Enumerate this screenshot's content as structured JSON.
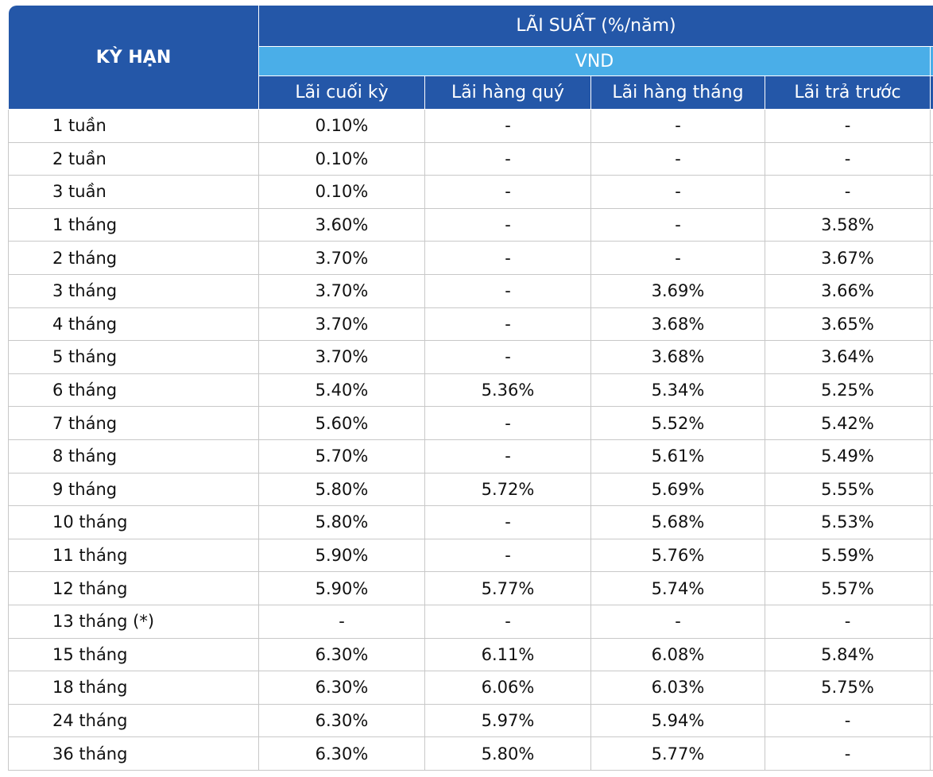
{
  "header": {
    "term": "KỲ HẠN",
    "rate": "LÃI SUẤT (%/năm)",
    "currency": "VND",
    "columns": [
      "Lãi cuối kỳ",
      "Lãi hàng quý",
      "Lãi hàng tháng",
      "Lãi trả trước"
    ]
  },
  "table": {
    "rows": [
      [
        "1 tuần",
        "0.10%",
        "-",
        "-",
        "-"
      ],
      [
        "2 tuần",
        "0.10%",
        "-",
        "-",
        "-"
      ],
      [
        "3 tuần",
        "0.10%",
        "-",
        "-",
        "-"
      ],
      [
        "1 tháng",
        "3.60%",
        "-",
        "-",
        "3.58%"
      ],
      [
        "2 tháng",
        "3.70%",
        "-",
        "-",
        "3.67%"
      ],
      [
        "3 tháng",
        "3.70%",
        "-",
        "3.69%",
        "3.66%"
      ],
      [
        "4 tháng",
        "3.70%",
        "-",
        "3.68%",
        "3.65%"
      ],
      [
        "5 tháng",
        "3.70%",
        "-",
        "3.68%",
        "3.64%"
      ],
      [
        "6 tháng",
        "5.40%",
        "5.36%",
        "5.34%",
        "5.25%"
      ],
      [
        "7 tháng",
        "5.60%",
        "-",
        "5.52%",
        "5.42%"
      ],
      [
        "8 tháng",
        "5.70%",
        "-",
        "5.61%",
        "5.49%"
      ],
      [
        "9 tháng",
        "5.80%",
        "5.72%",
        "5.69%",
        "5.55%"
      ],
      [
        "10 tháng",
        "5.80%",
        "-",
        "5.68%",
        "5.53%"
      ],
      [
        "11 tháng",
        "5.90%",
        "-",
        "5.76%",
        "5.59%"
      ],
      [
        "12 tháng",
        "5.90%",
        "5.77%",
        "5.74%",
        "5.57%"
      ],
      [
        "13 tháng (*)",
        "-",
        "-",
        "-",
        "-"
      ],
      [
        "15 tháng",
        "6.30%",
        "6.11%",
        "6.08%",
        "5.84%"
      ],
      [
        "18 tháng",
        "6.30%",
        "6.06%",
        "6.03%",
        "5.75%"
      ],
      [
        "24 tháng",
        "6.30%",
        "5.97%",
        "5.94%",
        "-"
      ],
      [
        "36 tháng",
        "6.30%",
        "5.80%",
        "5.77%",
        "-"
      ]
    ]
  }
}
